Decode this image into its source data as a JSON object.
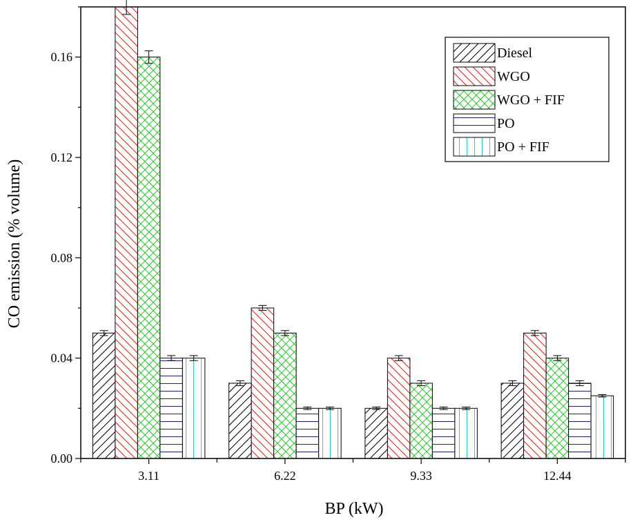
{
  "chart_data": {
    "type": "bar",
    "title": "",
    "xlabel": "BP (kW)",
    "ylabel": "CO emission (% volume)",
    "categories": [
      "3.11",
      "6.22",
      "9.33",
      "12.44"
    ],
    "ylim": [
      0,
      0.18
    ],
    "yticks": [
      "0.00",
      "0.04",
      "0.08",
      "0.12",
      "0.16"
    ],
    "series": [
      {
        "name": "Diesel",
        "values": [
          0.05,
          0.03,
          0.02,
          0.03
        ],
        "errors": [
          0.001,
          0.001,
          0.0005,
          0.001
        ],
        "color": "#000000",
        "pattern": "diag-right"
      },
      {
        "name": "WGO",
        "values": [
          0.18,
          0.06,
          0.04,
          0.05
        ],
        "errors": [
          0.003,
          0.001,
          0.001,
          0.001
        ],
        "color": "#e8201e",
        "pattern": "diag-left"
      },
      {
        "name": "WGO + FIF",
        "values": [
          0.16,
          0.05,
          0.03,
          0.04
        ],
        "errors": [
          0.0025,
          0.001,
          0.001,
          0.001
        ],
        "color": "#22cc22",
        "pattern": "crosshatch"
      },
      {
        "name": "PO",
        "values": [
          0.04,
          0.02,
          0.02,
          0.03
        ],
        "errors": [
          0.001,
          0.0005,
          0.0005,
          0.001
        ],
        "color": "#1a1aa8",
        "pattern": "horizontal"
      },
      {
        "name": "PO + FIF",
        "values": [
          0.04,
          0.02,
          0.02,
          0.025
        ],
        "errors": [
          0.001,
          0.0005,
          0.0005,
          0.0005
        ],
        "color": "#22cccc",
        "pattern": "vertical"
      }
    ],
    "legend_position": "top-right",
    "grid": false
  }
}
